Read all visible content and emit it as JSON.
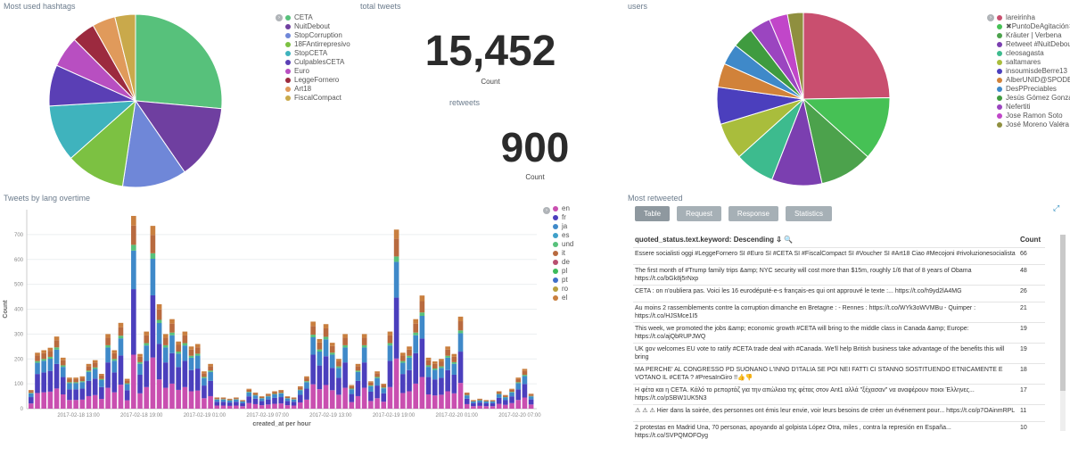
{
  "hashtags_panel": {
    "title": "Most used hashtags",
    "legend": [
      "CETA",
      "NuitDebout",
      "StopCorruption",
      "18FAntirrepresivo",
      "StopCETA",
      "CulpablesCETA",
      "Euro",
      "LeggeFornero",
      "Art18",
      "FiscalCompact"
    ],
    "colors": [
      "#57c17b",
      "#6f3fa0",
      "#6f87d8",
      "#7cc142",
      "#3fb3bd",
      "#5a3fb5",
      "#b84fc1",
      "#9c2a3f",
      "#e09a5b",
      "#c9a94b"
    ],
    "values": [
      27.5,
      14.5,
      12.5,
      11.5,
      11,
      8,
      6,
      4.5,
      4.5,
      4
    ]
  },
  "total_tweets": {
    "title": "total tweets",
    "value": "15,452",
    "label": "Count"
  },
  "retweets": {
    "title": "retweets",
    "value": "900",
    "label": "Count"
  },
  "users_panel": {
    "title": "users",
    "legend": [
      "lareirinha",
      "✖PuntoDeAgitación✖",
      "Kräuter | Verbena",
      "Retweet #NuitDebout",
      "cleosagasta",
      "saltamares",
      "insoumisdeBerre13",
      "AlberUNID@SPODE...",
      "DesPPreciables",
      "Jesús Gómez Gonzál...",
      "Nefertiti",
      "Jose Ramon Soto",
      "José Moreno Valera"
    ],
    "colors": [
      "#c94f6f",
      "#46c155",
      "#4ca24c",
      "#7b3fb0",
      "#3dbb8e",
      "#a9bd3c",
      "#4b3fbd",
      "#d1823a",
      "#3f89c9",
      "#3f9b3f",
      "#9b45c0",
      "#c146c9",
      "#8f8f3f"
    ],
    "values": [
      25,
      12,
      10,
      9.5,
      7.5,
      7,
      7,
      4.5,
      4,
      4,
      4,
      3.5,
      3
    ]
  },
  "lang_panel": {
    "title": "Tweets by lang overtime",
    "legend": [
      "en",
      "fr",
      "ja",
      "es",
      "und",
      "it",
      "de",
      "pl",
      "pt",
      "ro",
      "el"
    ],
    "colors": [
      "#c94fb0",
      "#4b3fbd",
      "#3f89c9",
      "#3fa0c9",
      "#57c17b",
      "#b86a3f",
      "#b84f6f",
      "#3dbb5b",
      "#3f6fc9",
      "#b8a03f",
      "#c97f3f"
    ]
  },
  "chart_data": {
    "type": "bar",
    "title": "Tweets by lang overtime",
    "xlabel": "created_at per hour",
    "ylabel": "Count",
    "ylim": [
      0,
      800
    ],
    "yticks": [
      "0",
      "100",
      "200",
      "300",
      "400",
      "500",
      "600",
      "700"
    ],
    "xtick_labels": [
      "2017-02-18 13:00",
      "2017-02-18 19:00",
      "2017-02-19 01:00",
      "2017-02-19 07:00",
      "2017-02-19 13:00",
      "2017-02-19 19:00",
      "2017-02-20 01:00",
      "2017-02-20 07:00"
    ],
    "legend_placement": "right",
    "series_names": [
      "en",
      "fr",
      "ja",
      "es",
      "und",
      "it",
      "de",
      "pl",
      "pt",
      "ro",
      "el"
    ],
    "totals": [
      75,
      225,
      235,
      245,
      290,
      205,
      125,
      125,
      130,
      180,
      195,
      140,
      300,
      235,
      345,
      120,
      775,
      220,
      310,
      735,
      420,
      300,
      360,
      270,
      310,
      250,
      260,
      150,
      180,
      45,
      45,
      40,
      45,
      35,
      80,
      65,
      50,
      60,
      70,
      75,
      50,
      45,
      90,
      130,
      350,
      280,
      340,
      265,
      200,
      300,
      95,
      180,
      300,
      110,
      150,
      100,
      310,
      720,
      225,
      250,
      360,
      455,
      205,
      190,
      200,
      250,
      220,
      370,
      65,
      35,
      40,
      35,
      35,
      70,
      55,
      80,
      125,
      160,
      60
    ]
  },
  "retweeted_panel": {
    "title": "Most retweeted",
    "tabs": [
      "Table",
      "Request",
      "Response",
      "Statistics"
    ],
    "col_text": "quoted_status.text.keyword: Descending ⇩",
    "col_count": "Count",
    "rows": [
      {
        "text": "Essere socialisti oggi #LeggeFornero SI #Euro SI #CETA SI #FiscalCompact SI #Voucher SI #Art18 Ciao #Mecojoni #rivoluzionesocialista",
        "count": "66"
      },
      {
        "text": "The first month of #Trump family trips &amp; NYC security will cost more than $15m, roughly 1/6 that of 8 years of Obama https://t.co/bGk8j5rNxp",
        "count": "48"
      },
      {
        "text": "CETA : on n'oubliera pas. Voici les 16 eurodéputé-e-s français-es qui ont approuvé le texte :... https://t.co/h9yd2lA4MG",
        "count": "26"
      },
      {
        "text": "Au moins 2 rassemblements contre la corruption dimanche en Bretagne : - Rennes : https://t.co/WYk3oWVMBu - Quimper : https://t.co/HJSMce1I5",
        "count": "21"
      },
      {
        "text": "This week, we promoted the jobs &amp; economic growth #CETA will bring to the middle class in Canada &amp; Europe: https://t.co/ajQbRUPJWQ",
        "count": "19"
      },
      {
        "text": "UK gov welcomes EU vote to ratify #CETA trade deal with #Canada. We'll help British business take advantage of the benefits this will bring",
        "count": "19"
      },
      {
        "text": "MA PERCHE' AL CONGRESSO PD SUONANO L'INNO D'ITALIA SE POI NEI FATTI CI STANNO SOSTITUENDO ETNICAMENTE E VOTANO IL #CETA ? #PresaInGiro !!👍👎",
        "count": "18"
      },
      {
        "text": "Η φέτα και η CETA. Κάλό το ρεπορτάζ για την απώλεια της φέτας στον Ant1 αλλά \"ξέχασαν\" να αναφέρουν ποιοι Έλληνες... https://t.co/pSBW1UK5N3",
        "count": "17"
      },
      {
        "text": "⚠ ⚠ ⚠ Hier dans la soirée, des personnes ont émis leur envie, voir leurs besoins de créer un événement pour... https://t.co/p7OAinmRPL",
        "count": "11"
      },
      {
        "text": "2 protestas en Madrid Una, 70 personas, apoyando al golpista López Otra, miles , contra la represión en España... https://t.co/SVPQMOFOyg",
        "count": "10"
      }
    ]
  }
}
